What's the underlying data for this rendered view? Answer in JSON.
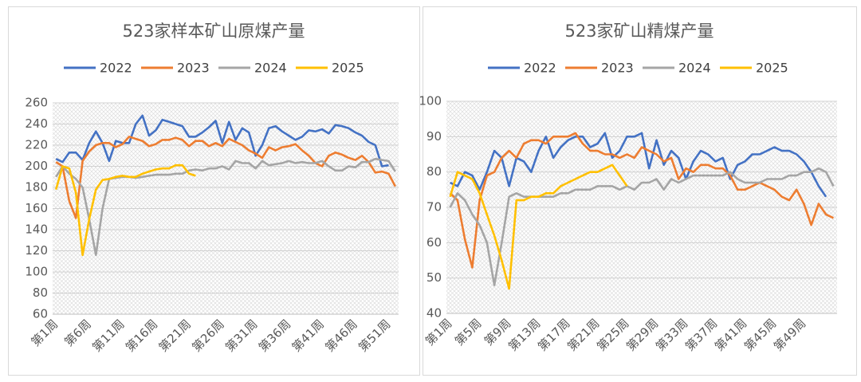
{
  "chart_data": [
    {
      "type": "line",
      "title": "523家样本矿山原煤产量",
      "grid": true,
      "legend": "top",
      "ylim": [
        60,
        260
      ],
      "yticks": [
        60,
        80,
        100,
        120,
        140,
        160,
        180,
        200,
        220,
        240,
        260
      ],
      "categories": [
        "第1周",
        null,
        null,
        null,
        null,
        "第6周",
        null,
        null,
        null,
        null,
        "第11周",
        null,
        null,
        null,
        null,
        "第16周",
        null,
        null,
        null,
        null,
        "第21周",
        null,
        null,
        null,
        null,
        "第26周",
        null,
        null,
        null,
        null,
        "第31周",
        null,
        null,
        null,
        null,
        "第36周",
        null,
        null,
        null,
        null,
        "第41周",
        null,
        null,
        null,
        null,
        "第46周",
        null,
        null,
        null,
        null,
        "第51周",
        null
      ],
      "series": [
        {
          "name": "2022",
          "color": "#4472c4",
          "values": [
            207,
            204,
            213,
            213,
            206,
            222,
            233,
            222,
            205,
            224,
            222,
            222,
            240,
            248,
            229,
            234,
            244,
            242,
            240,
            238,
            228,
            228,
            232,
            237,
            243,
            222,
            242,
            225,
            236,
            232,
            210,
            220,
            236,
            238,
            233,
            229,
            225,
            228,
            234,
            233,
            235,
            231,
            239,
            238,
            236,
            232,
            229,
            223,
            220,
            200,
            201,
            null
          ]
        },
        {
          "name": "2023",
          "color": "#ed7d31",
          "values": [
            204,
            200,
            167,
            151,
            205,
            214,
            220,
            222,
            222,
            218,
            221,
            228,
            226,
            224,
            219,
            221,
            225,
            225,
            227,
            225,
            219,
            224,
            224,
            219,
            222,
            219,
            226,
            223,
            220,
            215,
            212,
            208,
            218,
            215,
            218,
            219,
            221,
            215,
            210,
            203,
            200,
            210,
            213,
            211,
            208,
            206,
            210,
            204,
            194,
            195,
            193,
            181
          ]
        },
        {
          "name": "2024",
          "color": "#a5a5a5",
          "values": [
            190,
            200,
            193,
            188,
            180,
            150,
            116,
            160,
            188,
            189,
            190,
            190,
            189,
            190,
            191,
            192,
            192,
            192,
            193,
            193,
            196,
            197,
            196,
            198,
            198,
            200,
            197,
            205,
            203,
            203,
            198,
            205,
            201,
            202,
            203,
            205,
            203,
            204,
            203,
            203,
            205,
            200,
            196,
            196,
            200,
            199,
            204,
            204,
            207,
            206,
            205,
            195
          ]
        },
        {
          "name": "2025",
          "color": "#ffc000",
          "values": [
            178,
            200,
            198,
            175,
            116,
            150,
            178,
            187,
            188,
            190,
            191,
            190,
            190,
            193,
            195,
            197,
            198,
            198,
            201,
            201,
            193,
            191,
            null,
            null,
            null,
            null,
            null,
            null,
            null,
            null,
            null,
            null,
            null,
            null,
            null,
            null,
            null,
            null,
            null,
            null,
            null,
            null,
            null,
            null,
            null,
            null,
            null,
            null,
            null,
            null,
            null,
            null
          ]
        }
      ]
    },
    {
      "type": "line",
      "title": "523家矿山精煤产量",
      "grid": true,
      "legend": "top",
      "ylim": [
        40,
        100
      ],
      "yticks": [
        40,
        50,
        60,
        70,
        80,
        90,
        100
      ],
      "categories": [
        "第1周",
        null,
        null,
        null,
        "第5周",
        null,
        null,
        null,
        "第9周",
        null,
        null,
        null,
        "第13周",
        null,
        null,
        null,
        "第17周",
        null,
        null,
        null,
        "第21周",
        null,
        null,
        null,
        "第25周",
        null,
        null,
        null,
        "第29周",
        null,
        null,
        null,
        "第33周",
        null,
        null,
        null,
        "第37周",
        null,
        null,
        null,
        "第41周",
        null,
        null,
        null,
        "第45周",
        null,
        null,
        null,
        "第49周",
        null,
        null,
        null,
        null
      ],
      "series": [
        {
          "name": "2022",
          "color": "#4472c4",
          "values": [
            77,
            76,
            80,
            79,
            75,
            80,
            86,
            84,
            76,
            84,
            83,
            80,
            86,
            90,
            84,
            87,
            89,
            90,
            90,
            87,
            88,
            91,
            84,
            86,
            90,
            90,
            91,
            81,
            89,
            82,
            86,
            84,
            78,
            83,
            86,
            85,
            83,
            84,
            78,
            82,
            83,
            85,
            85,
            86,
            87,
            86,
            86,
            85,
            83,
            80,
            76,
            73,
            null
          ]
        },
        {
          "name": "2023",
          "color": "#ed7d31",
          "values": [
            74,
            72,
            61,
            53,
            72,
            79,
            80,
            84,
            86,
            84,
            88,
            89,
            89,
            88,
            90,
            90,
            90,
            91,
            88,
            86,
            86,
            85,
            85,
            84,
            85,
            84,
            87,
            86,
            85,
            83,
            84,
            78,
            81,
            80,
            82,
            82,
            81,
            81,
            79,
            75,
            75,
            76,
            77,
            76,
            75,
            73,
            72,
            75,
            71,
            65,
            71,
            68,
            67
          ]
        },
        {
          "name": "2024",
          "color": "#a5a5a5",
          "values": [
            70,
            74,
            72,
            68,
            65,
            60,
            48,
            60,
            73,
            74,
            73,
            73,
            73,
            73,
            73,
            74,
            74,
            75,
            75,
            75,
            76,
            76,
            76,
            75,
            76,
            75,
            77,
            77,
            78,
            75,
            78,
            77,
            78,
            79,
            79,
            79,
            79,
            79,
            80,
            78,
            77,
            77,
            77,
            78,
            78,
            78,
            79,
            79,
            80,
            80,
            81,
            80,
            76
          ]
        },
        {
          "name": "2025",
          "color": "#ffc000",
          "values": [
            73,
            80,
            79,
            78,
            74,
            68,
            62,
            55,
            47,
            72,
            72,
            73,
            73,
            74,
            74,
            76,
            77,
            78,
            79,
            80,
            80,
            81,
            82,
            79,
            76,
            null,
            null,
            null,
            null,
            null,
            null,
            null,
            null,
            null,
            null,
            null,
            null,
            null,
            null,
            null,
            null,
            null,
            null,
            null,
            null,
            null,
            null,
            null,
            null,
            null,
            null,
            null,
            null
          ]
        }
      ]
    }
  ]
}
